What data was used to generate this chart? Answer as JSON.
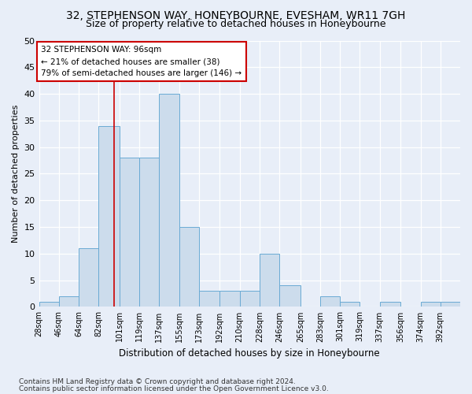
{
  "title1": "32, STEPHENSON WAY, HONEYBOURNE, EVESHAM, WR11 7GH",
  "title2": "Size of property relative to detached houses in Honeybourne",
  "xlabel": "Distribution of detached houses by size in Honeybourne",
  "ylabel": "Number of detached properties",
  "bin_labels": [
    "28sqm",
    "46sqm",
    "64sqm",
    "82sqm",
    "101sqm",
    "119sqm",
    "137sqm",
    "155sqm",
    "173sqm",
    "192sqm",
    "210sqm",
    "228sqm",
    "246sqm",
    "265sqm",
    "283sqm",
    "301sqm",
    "319sqm",
    "337sqm",
    "356sqm",
    "374sqm",
    "392sqm"
  ],
  "values": [
    1,
    2,
    11,
    34,
    28,
    28,
    40,
    15,
    3,
    3,
    3,
    10,
    4,
    0,
    2,
    1,
    0,
    1,
    0,
    1,
    1
  ],
  "bar_color": "#ccdcec",
  "bar_edge_color": "#6aaad4",
  "marker_value": 96,
  "bin_edges": [
    28,
    46,
    64,
    82,
    101,
    119,
    137,
    155,
    173,
    192,
    210,
    228,
    246,
    265,
    283,
    301,
    319,
    337,
    356,
    374,
    392,
    410
  ],
  "annotation_text": "32 STEPHENSON WAY: 96sqm\n← 21% of detached houses are smaller (38)\n79% of semi-detached houses are larger (146) →",
  "ylim": [
    0,
    50
  ],
  "yticks": [
    0,
    5,
    10,
    15,
    20,
    25,
    30,
    35,
    40,
    45,
    50
  ],
  "footer1": "Contains HM Land Registry data © Crown copyright and database right 2024.",
  "footer2": "Contains public sector information licensed under the Open Government Licence v3.0.",
  "bg_color": "#e8eef8",
  "plot_bg_color": "#e8eef8",
  "grid_color": "#ffffff",
  "title1_fontsize": 10,
  "title2_fontsize": 9,
  "red_line_color": "#cc0000",
  "annotation_box_color": "#ffffff",
  "annotation_box_edge": "#cc0000",
  "footer_fontsize": 6.5,
  "xlabel_fontsize": 8.5,
  "ylabel_fontsize": 8,
  "ytick_fontsize": 8,
  "xtick_fontsize": 7
}
